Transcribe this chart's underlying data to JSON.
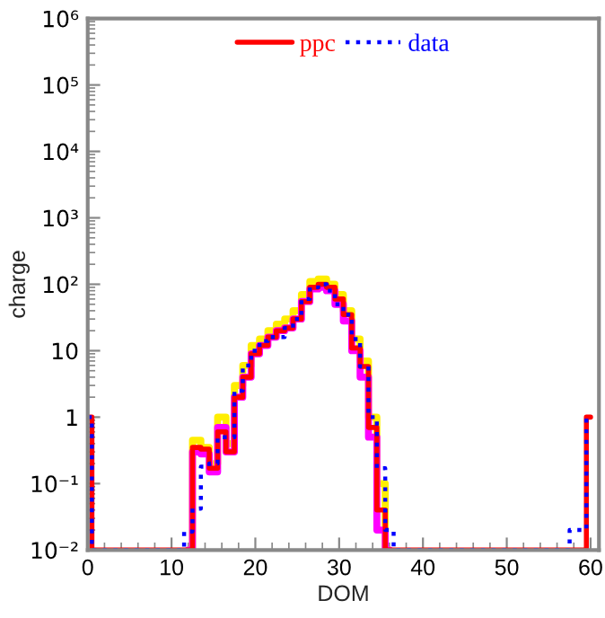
{
  "chart_data": {
    "type": "step",
    "xlabel": "DOM",
    "ylabel": "charge",
    "log": "y",
    "grid": false,
    "legend": "top",
    "xlim": [
      0,
      61
    ],
    "xticks": [
      0,
      10,
      20,
      30,
      40,
      50,
      60
    ],
    "ylim": [
      0.01,
      1000000
    ],
    "yticks": [
      {
        "value": 0.01,
        "label": "10⁻²"
      },
      {
        "value": 0.1,
        "label": "10⁻¹"
      },
      1,
      10,
      {
        "value": 100,
        "label": "10²"
      },
      {
        "value": 1000,
        "label": "10³"
      },
      {
        "value": 10000,
        "label": "10⁴"
      },
      {
        "value": 100000,
        "label": "10⁵"
      },
      {
        "value": 1000000,
        "label": "10⁶"
      }
    ],
    "series": [
      {
        "color": "#ffee00",
        "x": [
          12,
          13,
          14,
          15,
          16,
          17,
          18,
          19,
          20,
          21,
          22,
          23,
          24,
          25,
          26,
          27,
          28,
          29,
          30,
          31,
          32,
          33,
          34,
          35,
          36
        ],
        "values": [
          0.01,
          0.45,
          0.35,
          0.2,
          1,
          0.4,
          3,
          6,
          12,
          15,
          20,
          25,
          30,
          40,
          70,
          110,
          120,
          100,
          70,
          40,
          15,
          7,
          1,
          0.1,
          0.01
        ]
      },
      {
        "color": "#ff00ff",
        "x": [
          12,
          13,
          14,
          15,
          16,
          17,
          18,
          19,
          20,
          21,
          22,
          23,
          24,
          25,
          26,
          27,
          28,
          29,
          30,
          31,
          32,
          33,
          34,
          35,
          36
        ],
        "values": [
          0.01,
          0.3,
          0.28,
          0.15,
          0.7,
          0.3,
          2,
          4,
          9,
          12,
          16,
          20,
          22,
          30,
          55,
          85,
          90,
          80,
          50,
          28,
          10,
          4,
          0.5,
          0.02,
          0.01
        ]
      },
      {
        "name": "ppc",
        "color": "#ff0000",
        "line_style": "solid",
        "x": [
          0,
          1,
          12,
          13,
          14,
          15,
          16,
          17,
          18,
          19,
          20,
          21,
          22,
          23,
          24,
          25,
          26,
          27,
          28,
          29,
          30,
          31,
          32,
          33,
          34,
          35,
          36,
          59,
          60
        ],
        "values": [
          1,
          0.01,
          0.01,
          0.35,
          0.33,
          0.17,
          0.6,
          0.3,
          2,
          4,
          9,
          12,
          16,
          20,
          22,
          30,
          55,
          90,
          100,
          90,
          60,
          35,
          11,
          5.8,
          0.7,
          0.04,
          0.01,
          0.01,
          1
        ]
      },
      {
        "name": "data",
        "color": "#0000ff",
        "line_style": "dotted",
        "x": [
          0,
          1,
          11,
          12,
          13,
          14,
          15,
          16,
          17,
          18,
          19,
          20,
          21,
          22,
          23,
          24,
          25,
          26,
          27,
          28,
          29,
          30,
          31,
          32,
          33,
          34,
          35,
          36,
          37,
          57,
          58,
          59,
          60
        ],
        "values": [
          1,
          0.01,
          0.01,
          0.019,
          0.042,
          0.18,
          0.2,
          0.5,
          0.5,
          2.5,
          6,
          10,
          14,
          16,
          16,
          22,
          30,
          60,
          90,
          100,
          80,
          50,
          35,
          15,
          5.8,
          1,
          0.17,
          0.02,
          0.01,
          0.01,
          0.02,
          0.02,
          1
        ]
      }
    ]
  }
}
